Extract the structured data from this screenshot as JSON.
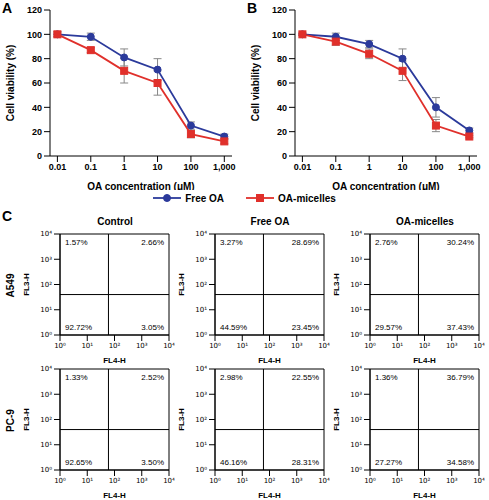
{
  "chart_data": [
    {
      "type": "line",
      "panel": "A",
      "x_label": "OA concentration (μM)",
      "y_label": "Cell viability (%)",
      "log": "x",
      "x": [
        0.01,
        0.1,
        1,
        10,
        100,
        1000
      ],
      "xlim": [
        0.006,
        1700
      ],
      "xticks": [
        0.01,
        0.1,
        1,
        10,
        100,
        {
          "value": 1000,
          "label": "1,000"
        }
      ],
      "ylim": [
        0,
        120
      ],
      "yticks": [
        0,
        20,
        40,
        60,
        80,
        100,
        120
      ],
      "legend": "bottom",
      "series": [
        {
          "name": "Free OA",
          "color": "#2b3a9b",
          "marker": "circle",
          "values": [
            100,
            98,
            81,
            71,
            25,
            16
          ],
          "error": [
            2,
            3,
            7,
            9,
            3,
            2
          ]
        },
        {
          "name": "OA-micelles",
          "color": "#e0302b",
          "marker": "square",
          "values": [
            100,
            87,
            70,
            60,
            18,
            12
          ],
          "error": [
            2,
            2,
            10,
            10,
            3,
            2
          ]
        }
      ]
    },
    {
      "type": "line",
      "panel": "B",
      "x_label": "OA concentration (μM)",
      "y_label": "Cell viability (%)",
      "log": "x",
      "x": [
        0.01,
        0.1,
        1,
        10,
        100,
        1000
      ],
      "xlim": [
        0.006,
        1700
      ],
      "xticks": [
        0.01,
        0.1,
        1,
        10,
        100,
        {
          "value": 1000,
          "label": "1,000"
        }
      ],
      "ylim": [
        0,
        120
      ],
      "yticks": [
        0,
        20,
        40,
        60,
        80,
        100,
        120
      ],
      "series": [
        {
          "name": "Free OA",
          "color": "#2b3a9b",
          "marker": "circle",
          "values": [
            100,
            98,
            92,
            80,
            40,
            21
          ],
          "error": [
            1,
            3,
            3,
            8,
            8,
            2
          ]
        },
        {
          "name": "OA-micelles",
          "color": "#e0302b",
          "marker": "square",
          "values": [
            100,
            94,
            84,
            70,
            25,
            16
          ],
          "error": [
            1,
            3,
            4,
            8,
            5,
            1
          ]
        }
      ]
    },
    {
      "type": "quadrant",
      "panel": "C",
      "title": "Control",
      "row_label": "A549",
      "x_label": "FL4-H",
      "y_label": "FL3-H",
      "log": true,
      "xlim": [
        1,
        10000
      ],
      "ylim": [
        1,
        10000
      ],
      "xticks": [
        {
          "value": 1,
          "label": "10⁰"
        },
        {
          "value": 10,
          "label": "10¹"
        },
        {
          "value": 100,
          "label": "10²"
        },
        {
          "value": 1000,
          "label": "10³"
        },
        {
          "value": 10000,
          "label": "10⁴"
        }
      ],
      "yticks": [
        {
          "value": 1,
          "label": "10⁰"
        },
        {
          "value": 10,
          "label": "10¹"
        },
        {
          "value": 100,
          "label": "10²"
        },
        {
          "value": 1000,
          "label": "10³"
        },
        {
          "value": 10000,
          "label": "10⁴"
        }
      ],
      "quadrant_gate": [
        60,
        40
      ],
      "quadrant_labels": {
        "upper_left": "1.57%",
        "upper_right": "2.66%",
        "lower_left": "92.72%",
        "lower_right": "3.05%"
      }
    },
    {
      "type": "quadrant",
      "title": "Free OA",
      "x_label": "FL4-H",
      "y_label": "FL3-H",
      "log": true,
      "xlim": [
        1,
        10000
      ],
      "ylim": [
        1,
        10000
      ],
      "xticks": [
        {
          "value": 1,
          "label": "10⁰"
        },
        {
          "value": 10,
          "label": "10¹"
        },
        {
          "value": 100,
          "label": "10²"
        },
        {
          "value": 1000,
          "label": "10³"
        },
        {
          "value": 10000,
          "label": "10⁴"
        }
      ],
      "yticks": [
        {
          "value": 1,
          "label": "10⁰"
        },
        {
          "value": 10,
          "label": "10¹"
        },
        {
          "value": 100,
          "label": "10²"
        },
        {
          "value": 1000,
          "label": "10³"
        },
        {
          "value": 10000,
          "label": "10⁴"
        }
      ],
      "quadrant_gate": [
        60,
        40
      ],
      "quadrant_labels": {
        "upper_left": "3.27%",
        "upper_right": "28.69%",
        "lower_left": "44.59%",
        "lower_right": "23.45%"
      }
    },
    {
      "type": "quadrant",
      "title": "OA-micelles",
      "x_label": "FL4-H",
      "y_label": "FL3-H",
      "log": true,
      "xlim": [
        1,
        10000
      ],
      "ylim": [
        1,
        10000
      ],
      "xticks": [
        {
          "value": 1,
          "label": "10⁰"
        },
        {
          "value": 10,
          "label": "10¹"
        },
        {
          "value": 100,
          "label": "10²"
        },
        {
          "value": 1000,
          "label": "10³"
        },
        {
          "value": 10000,
          "label": "10⁴"
        }
      ],
      "yticks": [
        {
          "value": 1,
          "label": "10⁰"
        },
        {
          "value": 10,
          "label": "10¹"
        },
        {
          "value": 100,
          "label": "10²"
        },
        {
          "value": 1000,
          "label": "10³"
        },
        {
          "value": 10000,
          "label": "10⁴"
        }
      ],
      "quadrant_gate": [
        60,
        40
      ],
      "quadrant_labels": {
        "upper_left": "2.76%",
        "upper_right": "30.24%",
        "lower_left": "29.57%",
        "lower_right": "37.43%"
      }
    },
    {
      "type": "quadrant",
      "row_label": "PC-9",
      "x_label": "FL4-H",
      "y_label": "FL3-H",
      "log": true,
      "xlim": [
        1,
        10000
      ],
      "ylim": [
        1,
        10000
      ],
      "xticks": [
        {
          "value": 1,
          "label": "10⁰"
        },
        {
          "value": 10,
          "label": "10¹"
        },
        {
          "value": 100,
          "label": "10²"
        },
        {
          "value": 1000,
          "label": "10³"
        },
        {
          "value": 10000,
          "label": "10⁴"
        }
      ],
      "yticks": [
        {
          "value": 1,
          "label": "10⁰"
        },
        {
          "value": 10,
          "label": "10¹"
        },
        {
          "value": 100,
          "label": "10²"
        },
        {
          "value": 1000,
          "label": "10³"
        },
        {
          "value": 10000,
          "label": "10⁴"
        }
      ],
      "quadrant_gate": [
        60,
        40
      ],
      "quadrant_labels": {
        "upper_left": "1.33%",
        "upper_right": "2.52%",
        "lower_left": "92.65%",
        "lower_right": "3.50%"
      }
    },
    {
      "type": "quadrant",
      "x_label": "FL4-H",
      "y_label": "FL3-H",
      "log": true,
      "xlim": [
        1,
        10000
      ],
      "ylim": [
        1,
        10000
      ],
      "xticks": [
        {
          "value": 1,
          "label": "10⁰"
        },
        {
          "value": 10,
          "label": "10¹"
        },
        {
          "value": 100,
          "label": "10²"
        },
        {
          "value": 1000,
          "label": "10³"
        },
        {
          "value": 10000,
          "label": "10⁴"
        }
      ],
      "yticks": [
        {
          "value": 1,
          "label": "10⁰"
        },
        {
          "value": 10,
          "label": "10¹"
        },
        {
          "value": 100,
          "label": "10²"
        },
        {
          "value": 1000,
          "label": "10³"
        },
        {
          "value": 10000,
          "label": "10⁴"
        }
      ],
      "quadrant_gate": [
        60,
        40
      ],
      "quadrant_labels": {
        "upper_left": "2.98%",
        "upper_right": "22.55%",
        "lower_left": "46.16%",
        "lower_right": "28.31%"
      }
    },
    {
      "type": "quadrant",
      "x_label": "FL4-H",
      "y_label": "FL3-H",
      "log": true,
      "xlim": [
        1,
        10000
      ],
      "ylim": [
        1,
        10000
      ],
      "xticks": [
        {
          "value": 1,
          "label": "10⁰"
        },
        {
          "value": 10,
          "label": "10¹"
        },
        {
          "value": 100,
          "label": "10²"
        },
        {
          "value": 1000,
          "label": "10³"
        },
        {
          "value": 10000,
          "label": "10⁴"
        }
      ],
      "yticks": [
        {
          "value": 1,
          "label": "10⁰"
        },
        {
          "value": 10,
          "label": "10¹"
        },
        {
          "value": 100,
          "label": "10²"
        },
        {
          "value": 1000,
          "label": "10³"
        },
        {
          "value": 10000,
          "label": "10⁴"
        }
      ],
      "quadrant_gate": [
        60,
        40
      ],
      "quadrant_labels": {
        "upper_left": "1.36%",
        "upper_right": "36.79%",
        "lower_left": "27.27%",
        "lower_right": "34.58%"
      }
    }
  ]
}
